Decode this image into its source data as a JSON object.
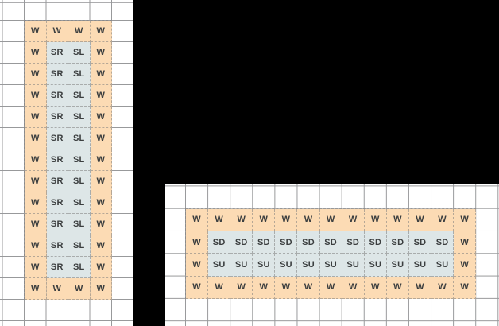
{
  "palette": {
    "background": "#000000",
    "panel_bg": "#ffffff",
    "grid_line": "#98999b",
    "cell_border": "rgba(125,125,125,0.55)",
    "wall_fill": "#fcdbb4",
    "slope_fill": "#dde6e7",
    "label_color": "#3b3e3f"
  },
  "left_panel": {
    "grid": [
      [
        "W",
        "W",
        "W",
        "W"
      ],
      [
        "W",
        "SR",
        "SL",
        "W"
      ],
      [
        "W",
        "SR",
        "SL",
        "W"
      ],
      [
        "W",
        "SR",
        "SL",
        "W"
      ],
      [
        "W",
        "SR",
        "SL",
        "W"
      ],
      [
        "W",
        "SR",
        "SL",
        "W"
      ],
      [
        "W",
        "SR",
        "SL",
        "W"
      ],
      [
        "W",
        "SR",
        "SL",
        "W"
      ],
      [
        "W",
        "SR",
        "SL",
        "W"
      ],
      [
        "W",
        "SR",
        "SL",
        "W"
      ],
      [
        "W",
        "SR",
        "SL",
        "W"
      ],
      [
        "W",
        "SR",
        "SL",
        "W"
      ],
      [
        "W",
        "W",
        "W",
        "W"
      ]
    ]
  },
  "right_panel": {
    "grid": [
      [
        "W",
        "W",
        "W",
        "W",
        "W",
        "W",
        "W",
        "W",
        "W",
        "W",
        "W",
        "W",
        "W"
      ],
      [
        "W",
        "SD",
        "SD",
        "SD",
        "SD",
        "SD",
        "SD",
        "SD",
        "SD",
        "SD",
        "SD",
        "SD",
        "W"
      ],
      [
        "W",
        "SU",
        "SU",
        "SU",
        "SU",
        "SU",
        "SU",
        "SU",
        "SU",
        "SU",
        "SU",
        "SU",
        "W"
      ],
      [
        "W",
        "W",
        "W",
        "W",
        "W",
        "W",
        "W",
        "W",
        "W",
        "W",
        "W",
        "W",
        "W"
      ]
    ]
  }
}
